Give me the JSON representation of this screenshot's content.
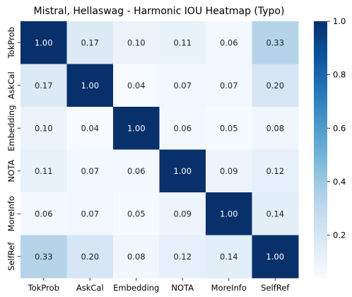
{
  "chart_data": {
    "type": "heatmap",
    "title": "Mistral, Hellaswag - Harmonic IOU Heatmap (Typo)",
    "xlabel": "",
    "ylabel": "",
    "x_categories": [
      "TokProb",
      "AskCal",
      "Embedding",
      "NOTA",
      "MoreInfo",
      "SelfRef"
    ],
    "y_categories": [
      "TokProb",
      "AskCal",
      "Embedding",
      "NOTA",
      "MoreInfo",
      "SelfRef"
    ],
    "values": [
      [
        1.0,
        0.17,
        0.1,
        0.11,
        0.06,
        0.33
      ],
      [
        0.17,
        1.0,
        0.04,
        0.07,
        0.07,
        0.2
      ],
      [
        0.1,
        0.04,
        1.0,
        0.06,
        0.05,
        0.08
      ],
      [
        0.11,
        0.07,
        0.06,
        1.0,
        0.09,
        0.12
      ],
      [
        0.06,
        0.07,
        0.05,
        0.09,
        1.0,
        0.14
      ],
      [
        0.33,
        0.2,
        0.08,
        0.12,
        0.14,
        1.0
      ]
    ],
    "value_format": "0.00",
    "colormap": "Blues",
    "vmin": 0.04,
    "vmax": 1.0,
    "colorbar_ticks": [
      0.2,
      0.4,
      0.6,
      0.8,
      1.0
    ],
    "colorbar_tick_labels": [
      "0.2",
      "0.4",
      "0.6",
      "0.8",
      "1.0"
    ]
  }
}
